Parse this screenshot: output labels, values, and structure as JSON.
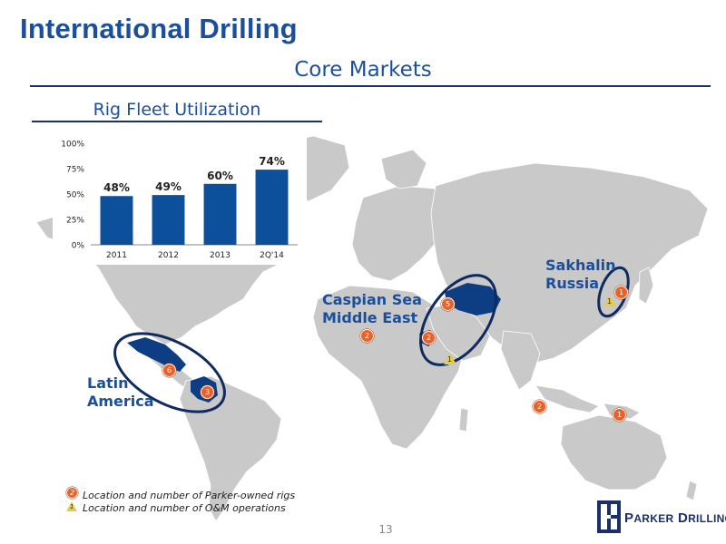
{
  "page": {
    "title": "International Drilling",
    "subtitle": "Core Markets",
    "page_number": "13"
  },
  "chart_data": {
    "type": "bar",
    "title": "Rig Fleet Utilization",
    "categories": [
      "2011",
      "2012",
      "2013",
      "2Q'14"
    ],
    "values": [
      48,
      49,
      60,
      74
    ],
    "data_labels": [
      "48%",
      "49%",
      "60%",
      "74%"
    ],
    "y_ticks": [
      "0%",
      "25%",
      "50%",
      "75%",
      "100%"
    ],
    "ylim": [
      0,
      100
    ],
    "grid": false,
    "bar_color": "#0c4f9a"
  },
  "regions": {
    "latin_america": "Latin\nAmerica",
    "caspian": "Caspian Sea\nMiddle East",
    "sakhalin": "Sakhalin\nRussia"
  },
  "markers": {
    "mexico": "6",
    "colombia": "3",
    "north_africa": "2",
    "kazakhstan": "5",
    "middle_east": "2",
    "sakhalin": "1",
    "indonesia": "2",
    "png": "1",
    "om_sakhalin": "1",
    "om_middle_east": "1"
  },
  "legend": {
    "rigs_marker": "2",
    "rigs_text": "Location and number of Parker-owned rigs",
    "om_marker": "1",
    "om_text": "Location and number of O&M operations"
  },
  "logo": {
    "text": "Parker Drilling",
    "icon": "parker-logo-icon"
  },
  "colors": {
    "title": "#1b4f9c",
    "land": "#c9c9c9",
    "highlight": "#0d3d82",
    "ellipse": "#0f2a5e",
    "marker": "#e8622a"
  }
}
